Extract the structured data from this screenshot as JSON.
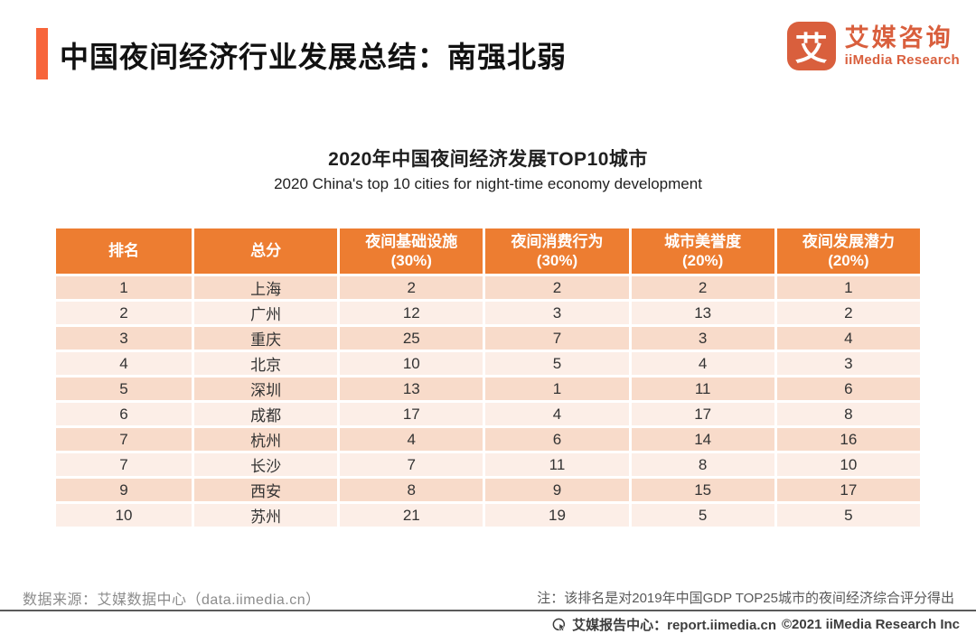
{
  "header": {
    "title": "中国夜间经济行业发展总结：南强北弱",
    "logo": {
      "icon_char": "艾",
      "name_cn": "艾媒咨询",
      "name_en": "iiMedia Research"
    }
  },
  "chart_data": {
    "type": "table",
    "title": "2020年中国夜间经济发展TOP10城市",
    "subtitle": "2020 China's top 10 cities for night-time economy development",
    "columns": [
      "排名",
      "总分",
      "夜间基础设施\n(30%)",
      "夜间消费行为\n(30%)",
      "城市美誉度\n(20%)",
      "夜间发展潜力\n(20%)"
    ],
    "rows": [
      [
        "1",
        "上海",
        "2",
        "2",
        "2",
        "1"
      ],
      [
        "2",
        "广州",
        "12",
        "3",
        "13",
        "2"
      ],
      [
        "3",
        "重庆",
        "25",
        "7",
        "3",
        "4"
      ],
      [
        "4",
        "北京",
        "10",
        "5",
        "4",
        "3"
      ],
      [
        "5",
        "深圳",
        "13",
        "1",
        "11",
        "6"
      ],
      [
        "6",
        "成都",
        "17",
        "4",
        "17",
        "8"
      ],
      [
        "7",
        "杭州",
        "4",
        "6",
        "14",
        "16"
      ],
      [
        "7",
        "长沙",
        "7",
        "11",
        "8",
        "10"
      ],
      [
        "9",
        "西安",
        "8",
        "9",
        "15",
        "17"
      ],
      [
        "10",
        "苏州",
        "21",
        "19",
        "5",
        "5"
      ]
    ]
  },
  "footer": {
    "source": "数据来源：艾媒数据中心（data.iimedia.cn）",
    "note": "注：该排名是对2019年中国GDP TOP25城市的夜间经济综合评分得出",
    "report_center": "艾媒报告中心：report.iimedia.cn",
    "copyright": "©2021  iiMedia Research Inc"
  },
  "colors": {
    "accent_bar": "#F7653B",
    "table_header_orange": "#ED7D31",
    "row_dark_pink": "#F8DBCA",
    "row_light_pink": "#FCEEE7",
    "logo_orange": "#D95F3D",
    "note_gray": "#595959",
    "source_gray": "#8C8C8C"
  }
}
